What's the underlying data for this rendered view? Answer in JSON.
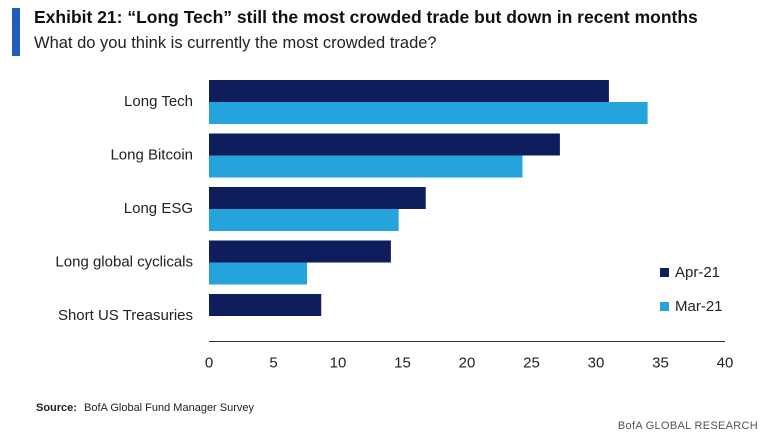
{
  "header": {
    "title": "Exhibit 21: “Long Tech” still the most crowded trade but down in recent months",
    "subtitle": "What do you think is currently the most crowded trade?"
  },
  "footer": {
    "source_label": "Source:",
    "source_text": "BofA Global Fund Manager Survey",
    "brand": "BofA GLOBAL RESEARCH"
  },
  "colors": {
    "accent": "#1f5fbf",
    "apr": "#0e1d5c",
    "mar": "#25a3dc"
  },
  "chart_data": {
    "type": "bar",
    "orientation": "horizontal",
    "title": "",
    "xlabel": "",
    "ylabel": "",
    "categories": [
      "Long Tech",
      "Long Bitcoin",
      "Long ESG",
      "Long global cyclicals",
      "Short US Treasuries"
    ],
    "series": [
      {
        "name": "Apr-21",
        "values": [
          31,
          27.2,
          16.8,
          14.1,
          8.7
        ]
      },
      {
        "name": "Mar-21",
        "values": [
          34,
          24.3,
          14.7,
          7.6,
          null
        ]
      }
    ],
    "xlim": [
      0,
      40
    ],
    "xticks": [
      0,
      5,
      10,
      15,
      20,
      25,
      30,
      35,
      40
    ],
    "grid": false,
    "legend_position": "bottom-right"
  }
}
